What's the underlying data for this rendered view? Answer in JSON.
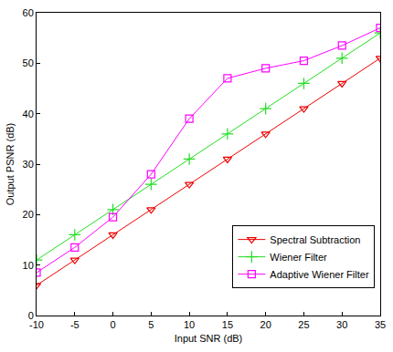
{
  "chart_data": {
    "type": "line",
    "x_label": "Input SNR (dB)",
    "y_label": "Output PSNR (dB)",
    "x": [
      -10,
      -5,
      0,
      5,
      10,
      15,
      20,
      25,
      30,
      35
    ],
    "series": [
      {
        "name": "Spectral Subtraction",
        "color": "#ee0000",
        "marker": "triangle-down",
        "values": [
          6,
          11,
          16,
          21,
          26,
          31,
          36,
          41,
          46,
          51
        ]
      },
      {
        "name": "Wiener Filter",
        "color": "#22dd22",
        "marker": "plus",
        "values": [
          11,
          16,
          21,
          26,
          31,
          36,
          41,
          46,
          51,
          56
        ]
      },
      {
        "name": "Adaptive Wiener Filter",
        "color": "#ff00ff",
        "marker": "square",
        "values": [
          8.5,
          13.5,
          19.5,
          28,
          39,
          47,
          49,
          50.5,
          53.5,
          57
        ]
      }
    ],
    "xlim": [
      -10,
      35
    ],
    "xticks": [
      -10,
      -5,
      0,
      5,
      10,
      15,
      20,
      25,
      30,
      35
    ],
    "ylim": [
      0,
      60
    ],
    "yticks": [
      0,
      10,
      20,
      30,
      40,
      50,
      60
    ],
    "grid": false,
    "legend": "lower right"
  }
}
